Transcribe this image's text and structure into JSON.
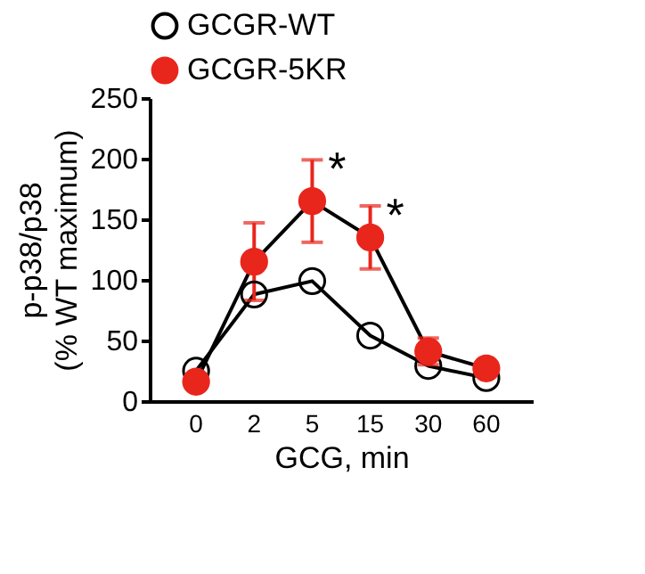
{
  "chart_data": {
    "type": "line",
    "xlabel": "GCG, min",
    "ylabel": "p-p38/p38\n(% WT maximum)",
    "categories": [
      "0",
      "2",
      "5",
      "15",
      "30",
      "60"
    ],
    "ylim": [
      0,
      250
    ],
    "yticks": [
      0,
      50,
      100,
      150,
      200,
      250
    ],
    "marker": "circle",
    "legend": "top",
    "annotations": [
      {
        "text": "*",
        "x": "5",
        "y": 199
      },
      {
        "text": "*",
        "x": "15",
        "y": 161
      }
    ],
    "series": [
      {
        "name": "GCGR-WT",
        "color": "#000000",
        "values": [
          25,
          88,
          99,
          54,
          29,
          19
        ]
      },
      {
        "name": "GCGR-5KR",
        "color": "#e8261c",
        "values": [
          16,
          115,
          165,
          135,
          41,
          27
        ],
        "errors": [
          null,
          32,
          34,
          26,
          11,
          4
        ]
      }
    ]
  }
}
